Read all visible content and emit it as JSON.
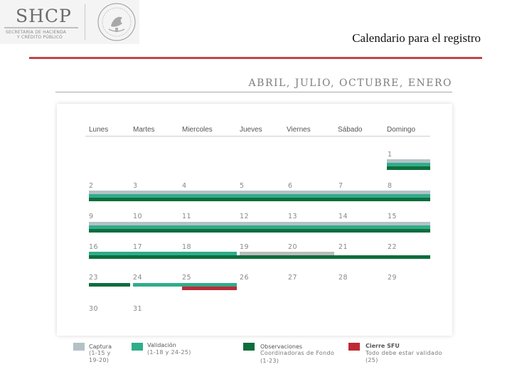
{
  "header": {
    "logo_text": "SHCP",
    "logo_sub1": "SECRETARÍA DE HACIENDA",
    "logo_sub2": "Y CRÉDITO PÚBLICO",
    "title": "Calendario para el registro"
  },
  "calendar": {
    "months": "ABRIL, JULIO, OCTUBRE, ENERO",
    "days": [
      "Lunes",
      "Martes",
      "Miercoles",
      "Jueves",
      "Viernes",
      "Sábado",
      "Domingo"
    ],
    "dates": [
      "1",
      "2",
      "3",
      "4",
      "5",
      "6",
      "7",
      "8",
      "9",
      "10",
      "11",
      "12",
      "13",
      "14",
      "15",
      "16",
      "17",
      "18",
      "19",
      "20",
      "21",
      "22",
      "23",
      "24",
      "25",
      "26",
      "27",
      "28",
      "29",
      "30",
      "31"
    ]
  },
  "legend": [
    {
      "title": "Captura",
      "lines": [
        "(1-15 y",
        "19-20)"
      ],
      "color": "#b3c1c6"
    },
    {
      "title": "Validación",
      "lines": [
        "(1-18 y 24-25)"
      ],
      "color": "#2fad8a"
    },
    {
      "title": "Observaciones",
      "lines": [
        "Coordinadoras de Fondo",
        "(1-23)"
      ],
      "color": "#0e6d3c"
    },
    {
      "title": "Cierre SFU",
      "lines": [
        "Todo debe estar validado",
        "(25)"
      ],
      "color": "#bd2b36"
    }
  ],
  "colors": {
    "accent_rule": "#c1454a",
    "captura": "#b3c1c6",
    "validacion": "#2fad8a",
    "observaciones": "#0e6d3c",
    "cierre": "#bd2b36"
  }
}
